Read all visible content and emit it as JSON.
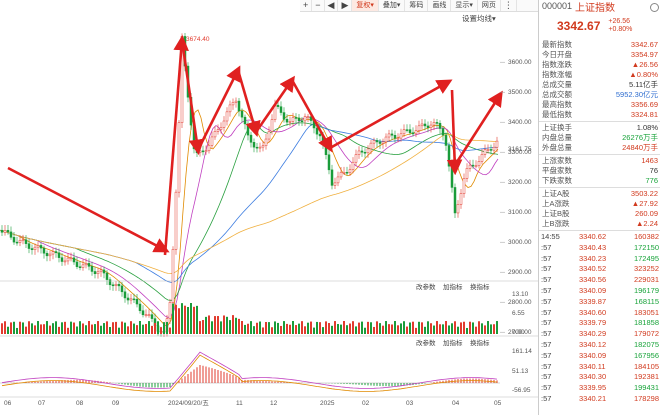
{
  "toolbar": {
    "plus": "+",
    "minus": "−",
    "left": "◀",
    "right": "▶",
    "buttons": [
      {
        "label": "复权▾",
        "active": true
      },
      {
        "label": "叠加▾"
      },
      {
        "label": "筹码"
      },
      {
        "label": "画线"
      },
      {
        "label": "显示▾"
      },
      {
        "label": "网页"
      }
    ],
    "more": "⋮"
  },
  "chart": {
    "settings_label": "设置均线▾",
    "max_label": "3674.40",
    "mid_price_label": "3161.75",
    "y_ticks": [
      "3600.00",
      "3500.00",
      "3400.00",
      "3300.00",
      "3200.00",
      "3100.00",
      "3000.00",
      "2900.00",
      "2800.00",
      "2700.00"
    ],
    "vol_ticks": [
      "13.10",
      "6.55",
      "0.00"
    ],
    "macd_ticks": [
      "161.14",
      "51.13",
      "-56.95"
    ],
    "vol_buttons": [
      "改参数",
      "加指标",
      "换指标"
    ],
    "macd_buttons": [
      "改参数",
      "加指标",
      "换指标"
    ],
    "x_labels": [
      "06",
      "07",
      "08",
      "09",
      "2024/09/20/五",
      "11",
      "12",
      "2025",
      "02",
      "03",
      "04",
      "05"
    ],
    "colors": {
      "up": "#e23b2e",
      "down": "#1a9c3a",
      "arrow": "#e02020"
    }
  },
  "side": {
    "code": "000001",
    "name": "上证指数",
    "price": "3342.67",
    "change": "+26.56",
    "change_pct": "+0.80%",
    "stats": [
      {
        "label": "最新指数",
        "value": "3342.67",
        "cls": "red"
      },
      {
        "label": "今日开盘",
        "value": "3354.97",
        "cls": "red"
      },
      {
        "label": "指数涨跌",
        "value": "▲26.56",
        "cls": "red"
      },
      {
        "label": "指数涨幅",
        "value": "▲0.80%",
        "cls": "red"
      },
      {
        "label": "总成交量",
        "value": "5.11亿手",
        "cls": ""
      },
      {
        "label": "总成交额",
        "value": "5952.30亿元",
        "cls": "blue"
      },
      {
        "label": "最高指数",
        "value": "3356.69",
        "cls": "red"
      },
      {
        "label": "最低指数",
        "value": "3324.81",
        "cls": "red"
      }
    ],
    "stats2": [
      {
        "label": "上证换手",
        "value": "1.08%",
        "cls": ""
      },
      {
        "label": "内盘总量",
        "value": "26276万手",
        "cls": "green"
      },
      {
        "label": "外盘总量",
        "value": "24840万手",
        "cls": "red"
      }
    ],
    "stats3": [
      {
        "label": "上涨家数",
        "value": "1463",
        "cls": "red"
      },
      {
        "label": "平盘家数",
        "value": "76",
        "cls": ""
      },
      {
        "label": "下跌家数",
        "value": "776",
        "cls": "green"
      }
    ],
    "stats4": [
      {
        "label": "上证A股",
        "value": "3503.22",
        "cls": "red"
      },
      {
        "label": "上A涨跌",
        "value": "▲27.92",
        "cls": "red"
      },
      {
        "label": "上证B股",
        "value": "260.09",
        "cls": "red"
      },
      {
        "label": "上B涨跌",
        "value": "▲2.24",
        "cls": "red"
      }
    ],
    "ticks": [
      {
        "time": "14:55",
        "price": "3340.62",
        "vol": "160382",
        "cls": "red"
      },
      {
        "time": ":57",
        "price": "3340.43",
        "vol": "172150",
        "cls": "green"
      },
      {
        "time": ":57",
        "price": "3340.23",
        "vol": "172495",
        "cls": "green"
      },
      {
        "time": ":57",
        "price": "3340.52",
        "vol": "323252",
        "cls": "red"
      },
      {
        "time": ":57",
        "price": "3340.56",
        "vol": "229031",
        "cls": "red"
      },
      {
        "time": ":57",
        "price": "3340.09",
        "vol": "196179",
        "cls": "green"
      },
      {
        "time": ":57",
        "price": "3339.87",
        "vol": "168115",
        "cls": "green"
      },
      {
        "time": ":57",
        "price": "3340.60",
        "vol": "183051",
        "cls": "red"
      },
      {
        "time": ":57",
        "price": "3339.79",
        "vol": "181858",
        "cls": "green"
      },
      {
        "time": ":57",
        "price": "3340.29",
        "vol": "179072",
        "cls": "red"
      },
      {
        "time": ":57",
        "price": "3340.12",
        "vol": "182075",
        "cls": "green"
      },
      {
        "time": ":57",
        "price": "3340.09",
        "vol": "167956",
        "cls": "green"
      },
      {
        "time": ":57",
        "price": "3340.11",
        "vol": "184105",
        "cls": "red"
      },
      {
        "time": ":57",
        "price": "3340.30",
        "vol": "192381",
        "cls": "red"
      },
      {
        "time": ":57",
        "price": "3339.95",
        "vol": "199431",
        "cls": "green"
      },
      {
        "time": ":57",
        "price": "3340.21",
        "vol": "178298",
        "cls": "red"
      }
    ]
  }
}
